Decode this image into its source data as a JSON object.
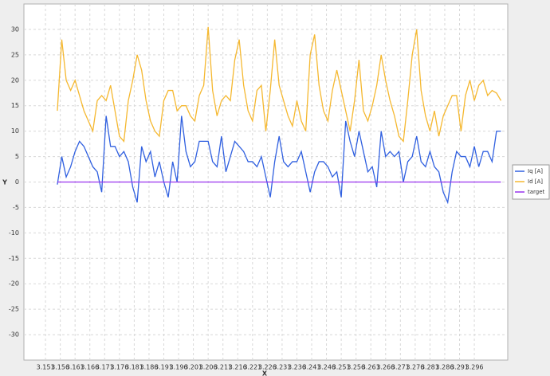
{
  "chart_data": {
    "type": "line",
    "xlabel": "X",
    "ylabel": "Y",
    "x": [
      3.155,
      3.1565,
      3.158,
      3.1595,
      3.161,
      3.1625,
      3.164,
      3.1655,
      3.167,
      3.1685,
      3.17,
      3.1715,
      3.173,
      3.1745,
      3.176,
      3.1775,
      3.179,
      3.1805,
      3.182,
      3.1835,
      3.185,
      3.1865,
      3.188,
      3.1895,
      3.191,
      3.1925,
      3.194,
      3.1955,
      3.197,
      3.1985,
      3.2,
      3.2015,
      3.203,
      3.2045,
      3.206,
      3.2075,
      3.209,
      3.2105,
      3.212,
      3.2135,
      3.215,
      3.2165,
      3.218,
      3.2195,
      3.221,
      3.2225,
      3.224,
      3.2255,
      3.227,
      3.2285,
      3.23,
      3.2315,
      3.233,
      3.2345,
      3.236,
      3.2375,
      3.239,
      3.2405,
      3.242,
      3.2435,
      3.245,
      3.2465,
      3.248,
      3.2495,
      3.251,
      3.2525,
      3.254,
      3.2555,
      3.257,
      3.2585,
      3.26,
      3.2615,
      3.263,
      3.2645,
      3.266,
      3.2675,
      3.269,
      3.2705,
      3.272,
      3.2735,
      3.275,
      3.2765,
      3.278,
      3.2795,
      3.281,
      3.2825,
      3.284,
      3.2855,
      3.287,
      3.2885,
      3.29,
      3.2915,
      3.293,
      3.2945,
      3.296,
      3.2975,
      3.299,
      3.3005,
      3.302,
      3.3035,
      3.305
    ],
    "series": [
      {
        "name": "Iq [A]",
        "color": "#3060e0",
        "values": [
          -0.5,
          5,
          1,
          3,
          6,
          8,
          7,
          5,
          3,
          2,
          -2,
          13,
          7,
          7,
          5,
          6,
          4,
          -1,
          -4,
          7,
          4,
          6,
          1,
          4,
          0,
          -3,
          4,
          0,
          13,
          6,
          3,
          4,
          8,
          8,
          8,
          4,
          3,
          9,
          2,
          5,
          8,
          7,
          6,
          4,
          4,
          3,
          5,
          1,
          -3,
          4,
          9,
          4,
          3,
          4,
          4,
          6,
          2,
          -2,
          2,
          4,
          4,
          3,
          1,
          2,
          -3,
          12,
          8,
          5,
          10,
          6,
          2,
          3,
          -1,
          10,
          5,
          6,
          5,
          6,
          0,
          4,
          5,
          9,
          4,
          3,
          6,
          3,
          2,
          -2,
          -4,
          2,
          6,
          5,
          5,
          3,
          7,
          3,
          6,
          6,
          4,
          10,
          10
        ]
      },
      {
        "name": "Id [A]",
        "color": "#f5b830",
        "values": [
          14,
          28,
          20,
          18,
          20,
          17,
          14,
          12,
          10,
          16,
          17,
          16,
          19,
          14,
          9,
          8,
          16,
          20,
          25,
          22,
          16,
          12,
          10,
          9,
          16,
          18,
          18,
          14,
          15,
          15,
          13,
          12,
          17,
          19,
          30.5,
          18,
          13,
          16,
          17,
          16,
          24,
          28,
          19,
          14,
          12,
          18,
          19,
          10,
          18,
          28,
          19,
          16,
          13,
          11,
          16,
          12,
          10,
          25,
          29,
          19,
          14,
          12,
          18,
          22,
          18,
          14,
          10,
          16,
          24,
          14,
          12,
          15,
          19,
          25,
          20,
          16,
          13,
          9,
          8,
          16,
          25,
          30,
          18,
          13,
          10,
          14,
          9,
          13,
          15,
          17,
          17,
          10,
          17,
          20,
          16,
          19,
          20,
          17,
          18,
          17.5,
          16
        ]
      },
      {
        "name": "target",
        "color": "#9933ee",
        "values": [
          0,
          0,
          0,
          0,
          0,
          0,
          0,
          0,
          0,
          0,
          0,
          0,
          0,
          0,
          0,
          0,
          0,
          0,
          0,
          0,
          0,
          0,
          0,
          0,
          0,
          0,
          0,
          0,
          0,
          0,
          0,
          0,
          0,
          0,
          0,
          0,
          0,
          0,
          0,
          0,
          0,
          0,
          0,
          0,
          0,
          0,
          0,
          0,
          0,
          0,
          0,
          0,
          0,
          0,
          0,
          0,
          0,
          0,
          0,
          0,
          0,
          0,
          0,
          0,
          0,
          0,
          0,
          0,
          0,
          0,
          0,
          0,
          0,
          0,
          0,
          0,
          0,
          0,
          0,
          0,
          0,
          0,
          0,
          0,
          0,
          0,
          0,
          0,
          0,
          0,
          0,
          0,
          0,
          0,
          0,
          0,
          0,
          0,
          0,
          0,
          0
        ]
      }
    ],
    "xlim": [
      3.1437,
      3.3073
    ],
    "ylim": [
      -35,
      35
    ],
    "xticks": [
      3.151,
      3.156,
      3.161,
      3.166,
      3.171,
      3.176,
      3.181,
      3.186,
      3.191,
      3.196,
      3.201,
      3.206,
      3.211,
      3.216,
      3.221,
      3.226,
      3.231,
      3.236,
      3.241,
      3.246,
      3.251,
      3.256,
      3.261,
      3.266,
      3.271,
      3.276,
      3.281,
      3.286,
      3.291,
      3.296
    ],
    "yticks": [
      -30,
      -25,
      -20,
      -15,
      -10,
      -5,
      0,
      5,
      10,
      15,
      20,
      25,
      30
    ],
    "grid": true,
    "legend": "right"
  }
}
